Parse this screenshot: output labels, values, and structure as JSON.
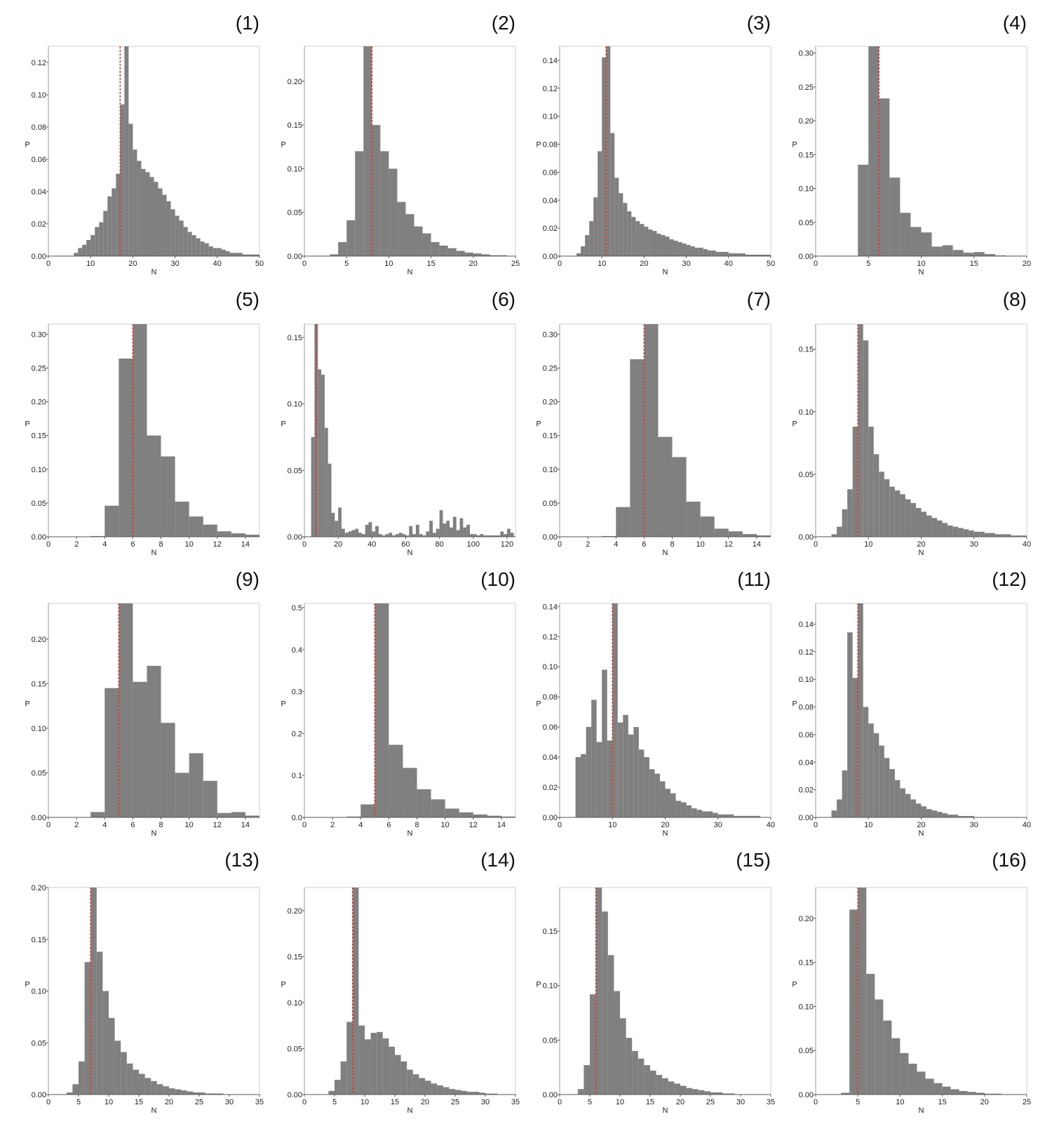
{
  "figure": {
    "bar_color": "#808080",
    "median_line_color": "#e0302a",
    "frame_color": "#cccccc"
  },
  "chart_data": [
    {
      "panel": "(1)",
      "type": "bar",
      "xlabel": "N",
      "ylabel": "P",
      "xlim": [
        0,
        50
      ],
      "ylim": [
        0,
        0.13
      ],
      "xticks": [
        0,
        10,
        20,
        30,
        40,
        50
      ],
      "yticks": [
        0.0,
        0.02,
        0.04,
        0.06,
        0.08,
        0.1,
        0.12
      ],
      "yticklabels": [
        "0.00",
        "0.02",
        "0.04",
        "0.06",
        "0.08",
        "0.10",
        "0.12"
      ],
      "bin_start": 6,
      "bin_width": 1,
      "values": [
        0.002,
        0.005,
        0.007,
        0.01,
        0.013,
        0.018,
        0.021,
        0.028,
        0.037,
        0.042,
        0.051,
        0.094,
        0.13,
        0.082,
        0.066,
        0.059,
        0.054,
        0.052,
        0.049,
        0.046,
        0.042,
        0.038,
        0.034,
        0.029,
        0.025,
        0.022,
        0.018,
        0.015,
        0.013,
        0.011,
        0.009,
        0.008,
        0.006,
        0.005,
        0.005,
        0.004,
        0.003,
        0.002,
        0.002,
        0.002,
        0.001,
        0.001,
        0.001,
        0.001
      ],
      "median": 17
    },
    {
      "panel": "(2)",
      "type": "bar",
      "xlabel": "N",
      "ylabel": "P",
      "xlim": [
        0,
        25
      ],
      "ylim": [
        0,
        0.24
      ],
      "xticks": [
        0,
        5,
        10,
        15,
        20,
        25
      ],
      "yticks": [
        0.0,
        0.05,
        0.1,
        0.15,
        0.2
      ],
      "yticklabels": [
        "0.00",
        "0.05",
        "0.10",
        "0.15",
        "0.20"
      ],
      "bin_start": 3,
      "bin_width": 1,
      "values": [
        0.002,
        0.016,
        0.041,
        0.12,
        0.24,
        0.15,
        0.12,
        0.1,
        0.062,
        0.048,
        0.034,
        0.026,
        0.016,
        0.012,
        0.009,
        0.006,
        0.004,
        0.003,
        0.002,
        0.001,
        0.001
      ],
      "median": 8
    },
    {
      "panel": "(3)",
      "type": "bar",
      "xlabel": "N",
      "ylabel": "P",
      "xlim": [
        0,
        50
      ],
      "ylim": [
        0,
        0.15
      ],
      "xticks": [
        0,
        10,
        20,
        30,
        40,
        50
      ],
      "yticks": [
        0.0,
        0.02,
        0.04,
        0.06,
        0.08,
        0.1,
        0.12,
        0.14
      ],
      "yticklabels": [
        "0.00",
        "0.02",
        "0.04",
        "0.06",
        "0.08",
        "0.10",
        "0.12",
        "0.14"
      ],
      "bin_start": 4,
      "bin_width": 1,
      "values": [
        0.002,
        0.007,
        0.015,
        0.025,
        0.042,
        0.075,
        0.142,
        0.15,
        0.088,
        0.056,
        0.045,
        0.038,
        0.032,
        0.028,
        0.025,
        0.023,
        0.021,
        0.019,
        0.018,
        0.016,
        0.015,
        0.014,
        0.012,
        0.011,
        0.01,
        0.009,
        0.008,
        0.007,
        0.006,
        0.006,
        0.005,
        0.004,
        0.004,
        0.003,
        0.003,
        0.003,
        0.002,
        0.002,
        0.002,
        0.002,
        0.001,
        0.001,
        0.001,
        0.001,
        0.001,
        0.001
      ],
      "median": 11
    },
    {
      "panel": "(4)",
      "type": "bar",
      "xlabel": "N",
      "ylabel": "P",
      "xlim": [
        0,
        20
      ],
      "ylim": [
        0,
        0.31
      ],
      "xticks": [
        0,
        5,
        10,
        15,
        20
      ],
      "yticks": [
        0.0,
        0.05,
        0.1,
        0.15,
        0.2,
        0.25,
        0.3
      ],
      "yticklabels": [
        "0.00",
        "0.05",
        "0.10",
        "0.15",
        "0.20",
        "0.25",
        "0.30"
      ],
      "bin_start": 4,
      "bin_width": 1,
      "values": [
        0.135,
        0.31,
        0.233,
        0.116,
        0.064,
        0.043,
        0.035,
        0.014,
        0.016,
        0.009,
        0.005,
        0.006,
        0.003,
        0.001
      ],
      "median": 6
    },
    {
      "panel": "(5)",
      "type": "bar",
      "xlabel": "N",
      "ylabel": "P",
      "xlim": [
        0,
        15
      ],
      "ylim": [
        0,
        0.315
      ],
      "xticks": [
        0,
        2,
        4,
        6,
        8,
        10,
        12,
        14
      ],
      "yticks": [
        0.0,
        0.05,
        0.1,
        0.15,
        0.2,
        0.25,
        0.3
      ],
      "yticklabels": [
        "0.00",
        "0.05",
        "0.10",
        "0.15",
        "0.20",
        "0.25",
        "0.30"
      ],
      "bin_start": 3,
      "bin_width": 1,
      "values": [
        0.001,
        0.046,
        0.264,
        0.315,
        0.15,
        0.119,
        0.052,
        0.03,
        0.018,
        0.008,
        0.005,
        0.003
      ],
      "median": 6
    },
    {
      "panel": "(6)",
      "type": "bar",
      "xlabel": "N",
      "ylabel": "P",
      "xlim": [
        0,
        125
      ],
      "ylim": [
        0,
        0.16
      ],
      "xticks": [
        0,
        20,
        40,
        60,
        80,
        100,
        120
      ],
      "yticks": [
        0.0,
        0.05,
        0.1,
        0.15
      ],
      "yticklabels": [
        "0.00",
        "0.05",
        "0.10",
        "0.15"
      ],
      "bin_start": 4,
      "bin_width": 2,
      "values": [
        0.075,
        0.16,
        0.126,
        0.122,
        0.082,
        0.055,
        0.018,
        0.012,
        0.022,
        0.006,
        0.003,
        0.004,
        0.005,
        0.006,
        0.003,
        0.002,
        0.009,
        0.011,
        0.004,
        0.008,
        0.002,
        0.001,
        0.002,
        0.003,
        0.001,
        0.002,
        0.003,
        0.002,
        0.001,
        0.008,
        0.002,
        0.009,
        0.002,
        0.001,
        0.004,
        0.012,
        0.003,
        0.006,
        0.02,
        0.01,
        0.012,
        0.007,
        0.015,
        0.005,
        0.014,
        0.007,
        0.009,
        0.002,
        0.002,
        0.001,
        0.002,
        0.001,
        0.001,
        0.001,
        0.001,
        0.001,
        0.004,
        0.002,
        0.006,
        0.003
      ],
      "median": 7
    },
    {
      "panel": "(7)",
      "type": "bar",
      "xlabel": "N",
      "ylabel": "P",
      "xlim": [
        0,
        15
      ],
      "ylim": [
        0,
        0.315
      ],
      "xticks": [
        0,
        2,
        4,
        6,
        8,
        10,
        12,
        14
      ],
      "yticks": [
        0.0,
        0.05,
        0.1,
        0.15,
        0.2,
        0.25,
        0.3
      ],
      "yticklabels": [
        "0.00",
        "0.05",
        "0.10",
        "0.15",
        "0.20",
        "0.25",
        "0.30"
      ],
      "bin_start": 3,
      "bin_width": 1,
      "values": [
        0.001,
        0.044,
        0.263,
        0.315,
        0.148,
        0.118,
        0.052,
        0.03,
        0.012,
        0.008,
        0.004,
        0.002
      ],
      "median": 6
    },
    {
      "panel": "(8)",
      "type": "bar",
      "xlabel": "N",
      "ylabel": "P",
      "xlim": [
        0,
        40
      ],
      "ylim": [
        0,
        0.17
      ],
      "xticks": [
        0,
        10,
        20,
        30,
        40
      ],
      "yticks": [
        0.0,
        0.05,
        0.1,
        0.15
      ],
      "yticklabels": [
        "0.00",
        "0.05",
        "0.10",
        "0.15"
      ],
      "bin_start": 3,
      "bin_width": 1,
      "values": [
        0.002,
        0.008,
        0.022,
        0.038,
        0.088,
        0.17,
        0.157,
        0.088,
        0.066,
        0.052,
        0.046,
        0.04,
        0.037,
        0.034,
        0.03,
        0.027,
        0.023,
        0.02,
        0.017,
        0.015,
        0.013,
        0.011,
        0.009,
        0.008,
        0.007,
        0.006,
        0.005,
        0.004,
        0.004,
        0.003,
        0.003,
        0.002,
        0.002,
        0.002,
        0.001,
        0.001,
        0.001
      ],
      "median": 8
    },
    {
      "panel": "(9)",
      "type": "bar",
      "xlabel": "N",
      "ylabel": "P",
      "xlim": [
        0,
        15
      ],
      "ylim": [
        0,
        0.24
      ],
      "xticks": [
        0,
        2,
        4,
        6,
        8,
        10,
        12,
        14
      ],
      "yticks": [
        0.0,
        0.05,
        0.1,
        0.15,
        0.2
      ],
      "yticklabels": [
        "0.00",
        "0.05",
        "0.10",
        "0.15",
        "0.20"
      ],
      "bin_start": 3,
      "bin_width": 1,
      "values": [
        0.006,
        0.145,
        0.24,
        0.152,
        0.17,
        0.106,
        0.05,
        0.072,
        0.041,
        0.005,
        0.006,
        0.002
      ],
      "median": 5
    },
    {
      "panel": "(10)",
      "type": "bar",
      "xlabel": "N",
      "ylabel": "P",
      "xlim": [
        0,
        15
      ],
      "ylim": [
        0,
        0.51
      ],
      "xticks": [
        0,
        2,
        4,
        6,
        8,
        10,
        12,
        14
      ],
      "yticks": [
        0.0,
        0.1,
        0.2,
        0.3,
        0.4,
        0.5
      ],
      "yticklabels": [
        "0.0",
        "0.1",
        "0.2",
        "0.3",
        "0.4",
        "0.5"
      ],
      "bin_start": 3,
      "bin_width": 1,
      "values": [
        0.002,
        0.031,
        0.51,
        0.173,
        0.118,
        0.067,
        0.043,
        0.021,
        0.012,
        0.007,
        0.004,
        0.002
      ],
      "median": 5
    },
    {
      "panel": "(11)",
      "type": "bar",
      "xlabel": "N",
      "ylabel": "P",
      "xlim": [
        0,
        40
      ],
      "ylim": [
        0,
        0.142
      ],
      "xticks": [
        0,
        10,
        20,
        30,
        40
      ],
      "yticks": [
        0.0,
        0.02,
        0.04,
        0.06,
        0.08,
        0.1,
        0.12,
        0.14
      ],
      "yticklabels": [
        "0.00",
        "0.02",
        "0.04",
        "0.06",
        "0.08",
        "0.10",
        "0.12",
        "0.14"
      ],
      "bin_start": 3,
      "bin_width": 1,
      "values": [
        0.04,
        0.042,
        0.06,
        0.078,
        0.05,
        0.098,
        0.051,
        0.142,
        0.063,
        0.068,
        0.055,
        0.06,
        0.045,
        0.04,
        0.032,
        0.029,
        0.024,
        0.019,
        0.016,
        0.011,
        0.01,
        0.008,
        0.006,
        0.005,
        0.004,
        0.004,
        0.003,
        0.002,
        0.002,
        0.002,
        0.001,
        0.001,
        0.001,
        0.001,
        0.001
      ],
      "median": 10
    },
    {
      "panel": "(12)",
      "type": "bar",
      "xlabel": "N",
      "ylabel": "P",
      "xlim": [
        0,
        40
      ],
      "ylim": [
        0,
        0.155
      ],
      "xticks": [
        0,
        10,
        20,
        30,
        40
      ],
      "yticks": [
        0.0,
        0.02,
        0.04,
        0.06,
        0.08,
        0.1,
        0.12,
        0.14
      ],
      "yticklabels": [
        "0.00",
        "0.02",
        "0.04",
        "0.06",
        "0.08",
        "0.10",
        "0.12",
        "0.14"
      ],
      "bin_start": 3,
      "bin_width": 1,
      "values": [
        0.005,
        0.013,
        0.034,
        0.134,
        0.101,
        0.155,
        0.08,
        0.068,
        0.061,
        0.052,
        0.043,
        0.035,
        0.027,
        0.021,
        0.017,
        0.013,
        0.01,
        0.008,
        0.006,
        0.005,
        0.004,
        0.003,
        0.002,
        0.002,
        0.001,
        0.001,
        0.001
      ],
      "median": 8
    },
    {
      "panel": "(13)",
      "type": "bar",
      "xlabel": "N",
      "ylabel": "P",
      "xlim": [
        0,
        35
      ],
      "ylim": [
        0,
        0.2
      ],
      "xticks": [
        0,
        5,
        10,
        15,
        20,
        25,
        30,
        35
      ],
      "yticks": [
        0.0,
        0.05,
        0.1,
        0.15,
        0.2
      ],
      "yticklabels": [
        "0.00",
        "0.05",
        "0.10",
        "0.15",
        "0.20"
      ],
      "bin_start": 3,
      "bin_width": 1,
      "values": [
        0.002,
        0.01,
        0.032,
        0.128,
        0.2,
        0.138,
        0.1,
        0.074,
        0.052,
        0.041,
        0.03,
        0.024,
        0.02,
        0.016,
        0.013,
        0.01,
        0.008,
        0.006,
        0.005,
        0.004,
        0.003,
        0.002,
        0.002,
        0.001,
        0.001,
        0.001
      ],
      "median": 7
    },
    {
      "panel": "(14)",
      "type": "bar",
      "xlabel": "N",
      "ylabel": "P",
      "xlim": [
        0,
        35
      ],
      "ylim": [
        0,
        0.225
      ],
      "xticks": [
        0,
        5,
        10,
        15,
        20,
        25,
        30,
        35
      ],
      "yticks": [
        0.0,
        0.05,
        0.1,
        0.15,
        0.2
      ],
      "yticklabels": [
        "0.00",
        "0.05",
        "0.10",
        "0.15",
        "0.20"
      ],
      "bin_start": 4,
      "bin_width": 1,
      "values": [
        0.004,
        0.016,
        0.036,
        0.079,
        0.225,
        0.075,
        0.06,
        0.067,
        0.068,
        0.061,
        0.052,
        0.043,
        0.036,
        0.027,
        0.022,
        0.018,
        0.015,
        0.012,
        0.01,
        0.008,
        0.006,
        0.005,
        0.004,
        0.003,
        0.003,
        0.002,
        0.001,
        0.001
      ],
      "median": 8
    },
    {
      "panel": "(15)",
      "type": "bar",
      "xlabel": "N",
      "ylabel": "P",
      "xlim": [
        0,
        35
      ],
      "ylim": [
        0,
        0.19
      ],
      "xticks": [
        0,
        5,
        10,
        15,
        20,
        25,
        30,
        35
      ],
      "yticks": [
        0.0,
        0.05,
        0.1,
        0.15
      ],
      "yticklabels": [
        "0.00",
        "0.05",
        "0.10",
        "0.15"
      ],
      "bin_start": 3,
      "bin_width": 1,
      "values": [
        0.005,
        0.027,
        0.092,
        0.19,
        0.168,
        0.128,
        0.095,
        0.07,
        0.052,
        0.04,
        0.033,
        0.027,
        0.022,
        0.018,
        0.015,
        0.012,
        0.01,
        0.008,
        0.006,
        0.005,
        0.004,
        0.003,
        0.002,
        0.002,
        0.001,
        0.001
      ],
      "median": 6
    },
    {
      "panel": "(16)",
      "type": "bar",
      "xlabel": "N",
      "ylabel": "P",
      "xlim": [
        0,
        25
      ],
      "ylim": [
        0,
        0.235
      ],
      "xticks": [
        0,
        5,
        10,
        15,
        20,
        25
      ],
      "yticks": [
        0.0,
        0.05,
        0.1,
        0.15,
        0.2
      ],
      "yticklabels": [
        "0.00",
        "0.05",
        "0.10",
        "0.15",
        "0.20"
      ],
      "bin_start": 3,
      "bin_width": 1,
      "values": [
        0.002,
        0.21,
        0.235,
        0.137,
        0.108,
        0.084,
        0.064,
        0.047,
        0.035,
        0.026,
        0.018,
        0.013,
        0.009,
        0.006,
        0.004,
        0.003,
        0.002,
        0.001,
        0.001
      ],
      "median": 5
    }
  ]
}
